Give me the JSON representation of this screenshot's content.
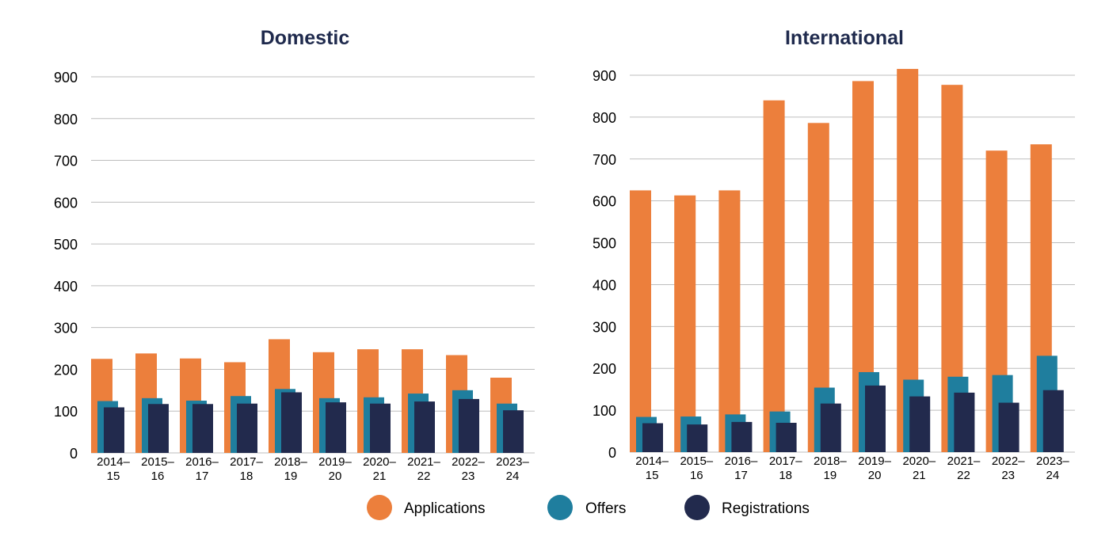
{
  "colors": {
    "applications": "#ec7f3c",
    "offers": "#1f7e9e",
    "registrations": "#222a4d",
    "title": "#1f2a4d"
  },
  "legend": {
    "items": [
      {
        "name": "Applications",
        "color": "#ec7f3c"
      },
      {
        "name": "Offers",
        "color": "#1f7e9e"
      },
      {
        "name": "Registrations",
        "color": "#222a4d"
      }
    ]
  },
  "chart_data": [
    {
      "type": "bar",
      "title": "Domestic",
      "categories": [
        [
          "2014–",
          "15"
        ],
        [
          "2015–",
          "16"
        ],
        [
          "2016–",
          "17"
        ],
        [
          "2017–",
          "18"
        ],
        [
          "2018–",
          "19"
        ],
        [
          "2019–",
          "20"
        ],
        [
          "2020–",
          "21"
        ],
        [
          "2021–",
          "22"
        ],
        [
          "2022–",
          "23"
        ],
        [
          "2023–",
          "24"
        ]
      ],
      "yticks": [
        "0",
        "100",
        "200",
        "300",
        "400",
        "500",
        "600",
        "700",
        "800",
        "900"
      ],
      "ylim": [
        0,
        900
      ],
      "grid": true,
      "series": [
        {
          "name": "Applications",
          "values": [
            225,
            238,
            226,
            217,
            272,
            241,
            248,
            248,
            234,
            180
          ]
        },
        {
          "name": "Offers",
          "values": [
            124,
            131,
            125,
            136,
            153,
            131,
            133,
            142,
            150,
            118
          ]
        },
        {
          "name": "Registrations",
          "values": [
            109,
            117,
            117,
            118,
            145,
            121,
            118,
            123,
            129,
            102
          ]
        }
      ]
    },
    {
      "type": "bar",
      "title": "International",
      "categories": [
        [
          "2014–",
          "15"
        ],
        [
          "2015–",
          "16"
        ],
        [
          "2016–",
          "17"
        ],
        [
          "2017–",
          "18"
        ],
        [
          "2018–",
          "19"
        ],
        [
          "2019–",
          "20"
        ],
        [
          "2020–",
          "21"
        ],
        [
          "2021–",
          "22"
        ],
        [
          "2022–",
          "23"
        ],
        [
          "2023–",
          "24"
        ]
      ],
      "yticks": [
        "0",
        "100",
        "200",
        "300",
        "400",
        "500",
        "600",
        "700",
        "800",
        "900"
      ],
      "ylim": [
        0,
        900
      ],
      "grid": true,
      "series": [
        {
          "name": "Applications",
          "values": [
            625,
            613,
            625,
            840,
            786,
            886,
            915,
            877,
            720,
            735
          ]
        },
        {
          "name": "Offers",
          "values": [
            84,
            85,
            90,
            97,
            154,
            191,
            173,
            180,
            184,
            230
          ]
        },
        {
          "name": "Registrations",
          "values": [
            69,
            66,
            72,
            70,
            116,
            159,
            133,
            142,
            118,
            148
          ]
        }
      ]
    }
  ]
}
